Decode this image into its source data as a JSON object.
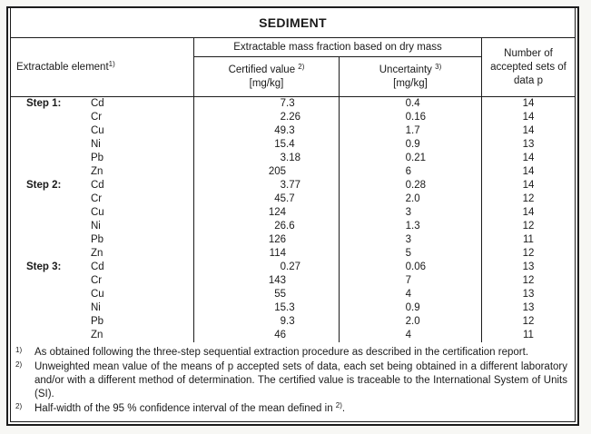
{
  "page": {
    "background": "#f7f7f4",
    "border_color": "#1c1c1c"
  },
  "table": {
    "title": "SEDIMENT",
    "header": {
      "element_label": "Extractable element",
      "element_sup": "1)",
      "group_label": "Extractable mass fraction based on dry mass",
      "certified_label": "Certified value",
      "certified_sup": "2)",
      "certified_unit": "[mg/kg]",
      "uncertainty_label": "Uncertainty",
      "uncertainty_sup": "3)",
      "uncertainty_unit": "[mg/kg]",
      "sets_label": "Number of accepted sets of data p"
    },
    "rows": [
      {
        "step": "Step 1:",
        "element": "Cd",
        "certified": "7.3",
        "uncertainty": "0.4",
        "sets": "14"
      },
      {
        "step": "",
        "element": "Cr",
        "certified": "2.26",
        "uncertainty": "0.16",
        "sets": "14"
      },
      {
        "step": "",
        "element": "Cu",
        "certified": "49.3",
        "uncertainty": "1.7",
        "sets": "14"
      },
      {
        "step": "",
        "element": "Ni",
        "certified": "15.4",
        "uncertainty": "0.9",
        "sets": "13"
      },
      {
        "step": "",
        "element": "Pb",
        "certified": "3.18",
        "uncertainty": "0.21",
        "sets": "14"
      },
      {
        "step": "",
        "element": "Zn",
        "certified": "205",
        "uncertainty": "6",
        "sets": "14"
      },
      {
        "step": "Step 2:",
        "element": "Cd",
        "certified": "3.77",
        "uncertainty": "0.28",
        "sets": "14"
      },
      {
        "step": "",
        "element": "Cr",
        "certified": "45.7",
        "uncertainty": "2.0",
        "sets": "12"
      },
      {
        "step": "",
        "element": "Cu",
        "certified": "124",
        "uncertainty": "3",
        "sets": "14"
      },
      {
        "step": "",
        "element": "Ni",
        "certified": "26.6",
        "uncertainty": "1.3",
        "sets": "12"
      },
      {
        "step": "",
        "element": "Pb",
        "certified": "126",
        "uncertainty": "3",
        "sets": "11"
      },
      {
        "step": "",
        "element": "Zn",
        "certified": "114",
        "uncertainty": "5",
        "sets": "12"
      },
      {
        "step": "Step 3:",
        "element": "Cd",
        "certified": "0.27",
        "uncertainty": "0.06",
        "sets": "13"
      },
      {
        "step": "",
        "element": "Cr",
        "certified": "143",
        "uncertainty": "7",
        "sets": "12"
      },
      {
        "step": "",
        "element": "Cu",
        "certified": "55",
        "uncertainty": "4",
        "sets": "13"
      },
      {
        "step": "",
        "element": "Ni",
        "certified": "15.3",
        "uncertainty": "0.9",
        "sets": "13"
      },
      {
        "step": "",
        "element": "Pb",
        "certified": "9.3",
        "uncertainty": "2.0",
        "sets": "12"
      },
      {
        "step": "",
        "element": "Zn",
        "certified": "46",
        "uncertainty": "4",
        "sets": "11"
      }
    ],
    "footnotes": [
      {
        "marker": "1)",
        "text": "As obtained following the three-step sequential extraction procedure as described in the certification report.",
        "tail_sup": "",
        "tail": "",
        "justify": false
      },
      {
        "marker": "2)",
        "text": "Unweighted mean value of the means of p accepted sets of data, each set being obtained in a different laboratory and/or with a different method of determination. The certified value is traceable to the International System of Units (SI).",
        "tail_sup": "",
        "tail": "",
        "justify": true
      },
      {
        "marker": "2)",
        "text": "Half-width of the 95 % confidence interval of the mean defined in ",
        "tail_sup": "2)",
        "tail": ".",
        "justify": false
      }
    ]
  }
}
